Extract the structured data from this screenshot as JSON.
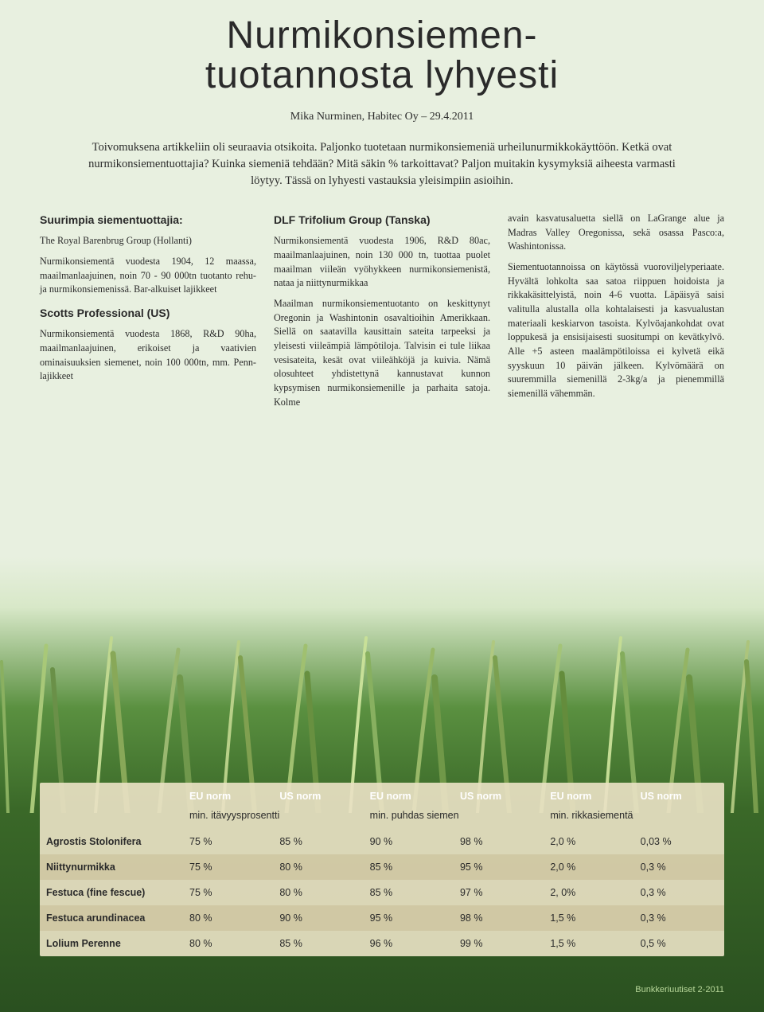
{
  "title_line1": "Nurmikonsiemen-",
  "title_line2": "tuotannosta lyhyesti",
  "byline": "Mika Nurminen, Habitec Oy – 29.4.2011",
  "intro": "Toivomuksena artikkeliin oli seuraavia otsikoita. Paljonko tuotetaan nurmikonsiemeniä urheilunurmikkokäyttöön. Ketkä ovat nurmikonsiementuottajia? Kuinka siemeniä tehdään? Mitä säkin % tarkoittavat? Paljon muitakin kysymyksiä aiheesta varmasti löytyy. Tässä on lyhyesti vastauksia yleisimpiin asioihin.",
  "col1": {
    "h1": "Suurimpia siementuottajia:",
    "p1": "The Royal Barenbrug Group (Hollanti)",
    "p1b": "Nurmikonsiementä vuodesta 1904, 12 maassa, maailmanlaajuinen, noin 70 - 90 000tn tuotanto rehu- ja nurmikonsiemenissä. Bar-alkuiset lajikkeet",
    "h2": "Scotts Professional (US)",
    "p2": "Nurmikonsiementä vuodesta 1868, R&D 90ha, maailmanlaajuinen, erikoiset ja vaativien ominaisuuksien siemenet, noin 100 000tn, mm. Penn-lajikkeet"
  },
  "col2": {
    "h1": "DLF Trifolium Group (Tanska)",
    "p1": "Nurmikonsiementä vuodesta 1906, R&D 80ac, maailmanlaajuinen, noin 130 000 tn, tuottaa puolet maailman viileän vyöhykkeen nurmikonsiemenistä, nataa ja niittynurmikkaa",
    "p2": "Maailman nurmikonsiementuotanto on keskittynyt Oregonin ja Washintonin osavaltioihin Amerikkaan. Siellä on saatavilla kausittain sateita tarpeeksi ja yleisesti viileämpiä lämpötiloja. Talvisin ei tule liikaa vesisateita, kesät ovat viileähköjä ja kuivia. Nämä olosuhteet yhdistettynä kannustavat kunnon kypsymisen nurmikonsiemenille ja parhaita satoja. Kolme"
  },
  "col3": {
    "p1": "avain kasvatusaluetta siellä on LaGrange alue ja Madras Valley Oregonissa, sekä osassa Pasco:a, Washintonissa.",
    "p2": "Siementuotannoissa on käytössä vuoroviljelyperiaate. Hyvältä lohkolta saa satoa riippuen hoidoista ja rikkakäsittelyistä, noin 4-6 vuotta. Läpäisyä saisi valitulla alustalla olla kohtalaisesti ja kasvualustan materiaali keskiarvon tasoista. Kylvöajankohdat ovat loppukesä ja ensisijaisesti suositumpi on kevätkylvö. Alle +5 asteen maalämpötiloissa ei kylvetä eikä syyskuun 10 päivän jälkeen. Kylvömäärä on suuremmilla siemenillä 2-3kg/a ja pienemmillä siemenillä vähemmän."
  },
  "table": {
    "header_colors": {
      "text": "#ffffff"
    },
    "group_headers": [
      "EU norm",
      "US norm",
      "EU norm",
      "US norm",
      "EU norm",
      "US norm"
    ],
    "sub_headers": [
      "min. itävyysprosentti",
      "min. puhdas siemen",
      "min. rikkasiementä"
    ],
    "rows": [
      {
        "label": "Agrostis Stolonifera",
        "cells": [
          "75 %",
          "85 %",
          "90 %",
          "98 %",
          "2,0 %",
          "0,03 %"
        ]
      },
      {
        "label": "Niittynurmikka",
        "cells": [
          "75 %",
          "80 %",
          "85 %",
          "95 %",
          "2,0 %",
          "0,3 %"
        ]
      },
      {
        "label": "Festuca (fine fescue)",
        "cells": [
          "75 %",
          "80 %",
          "85 %",
          "97 %",
          "2, 0%",
          "0,3 %"
        ]
      },
      {
        "label": "Festuca arundinacea",
        "cells": [
          "80 %",
          "90 %",
          "95 %",
          "98 %",
          "1,5 %",
          "0,3 %"
        ]
      },
      {
        "label": "Lolium Perenne",
        "cells": [
          "80 %",
          "85 %",
          "96 %",
          "99 %",
          "1,5 %",
          "0,5 %"
        ]
      }
    ],
    "alt_bg": "rgba(200,190,150,0.55)"
  },
  "footer": "Bunkkeriuutiset 2-2011",
  "colors": {
    "bg_top": "#e8f0e0",
    "bg_mid": "#d8e8c8",
    "bg_grass1": "#5a9040",
    "bg_grass2": "#3a6828",
    "bg_grass3": "#2a5020",
    "table_bg": "rgba(232,225,195,0.92)",
    "text": "#2a2a2a"
  }
}
